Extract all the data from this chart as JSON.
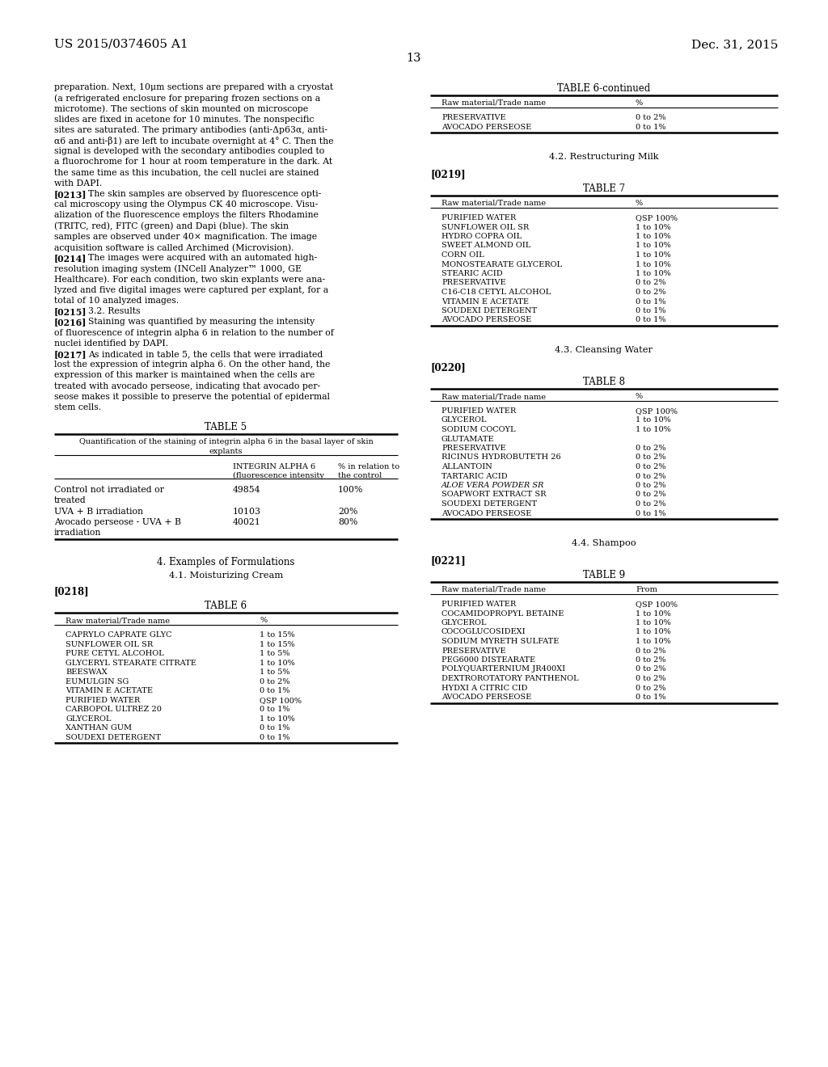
{
  "header_left": "US 2015/0374605 A1",
  "header_right": "Dec. 31, 2015",
  "page_number": "13",
  "para0": "preparation. Next, 10μm sections are prepared with a cryostat (a refrigerated enclosure for preparing frozen sections on a microtome). The sections of skin mounted on microscope slides are fixed in acetone for 10 minutes. The nonspecific sites are saturated. The primary antibodies (anti-Δp63α, anti-α6 and anti-β1) are left to incubate overnight at 4° C. Then the signal is developed with the secondary antibodies coupled to a fluorochrome for 1 hour at room temperature in the dark. At the same time as this incubation, the cell nuclei are stained with DAPI.",
  "para0_lines": [
    "preparation. Next, 10μm sections are prepared with a cryostat",
    "(a refrigerated enclosure for preparing frozen sections on a",
    "microtome). The sections of skin mounted on microscope",
    "slides are fixed in acetone for 10 minutes. The nonspecific",
    "sites are saturated. The primary antibodies (anti-Δp63α, anti-",
    "α6 and anti-β1) are left to incubate overnight at 4° C. Then the",
    "signal is developed with the secondary antibodies coupled to",
    "a fluorochrome for 1 hour at room temperature in the dark. At",
    "the same time as this incubation, the cell nuclei are stained",
    "with DAPI."
  ],
  "para213_tag": "[0213]",
  "para213_lines": [
    "The skin samples are observed by fluorescence opti-",
    "cal microscopy using the Olympus CK 40 microscope. Visu-",
    "alization of the fluorescence employs the filters Rhodamine",
    "(TRITC, red), FITC (green) and Dapi (blue). The skin",
    "samples are observed under 40× magnification. The image",
    "acquisition software is called Archimed (Microvision)."
  ],
  "para214_tag": "[0214]",
  "para214_lines": [
    "The images were acquired with an automated high-",
    "resolution imaging system (INCell Analyzer™ 1000, GE",
    "Healthcare). For each condition, two skin explants were ana-",
    "lyzed and five digital images were captured per explant, for a",
    "total of 10 analyzed images."
  ],
  "para215_tag": "[0215]",
  "para215_text": "3.2. Results",
  "para216_tag": "[0216]",
  "para216_lines": [
    "Staining was quantified by measuring the intensity",
    "of fluorescence of integrin alpha 6 in relation to the number of",
    "nuclei identified by DAPI."
  ],
  "para217_tag": "[0217]",
  "para217_lines": [
    "As indicated in table 5, the cells that were irradiated",
    "lost the expression of integrin alpha 6. On the other hand, the",
    "expression of this marker is maintained when the cells are",
    "treated with avocado perseose, indicating that avocado per-",
    "seose makes it possible to preserve the potential of epidermal",
    "stem cells."
  ],
  "table5_title": "TABLE 5",
  "table5_sub1": "Quantification of the staining of integrin alpha 6 in the basal layer of skin",
  "table5_sub2": "explants",
  "table5_col2a": "INTEGRIN ALPHA 6",
  "table5_col2b": "(fluorescence intensity",
  "table5_col3a": "% in relation to",
  "table5_col3b": "the control",
  "table5_rows": [
    [
      "Control not irradiated or",
      "treated",
      "49854",
      "100%"
    ],
    [
      "UVA + B irradiation",
      "",
      "10103",
      "20%"
    ],
    [
      "Avocado perseose - UVA + B",
      "irradiation",
      "40021",
      "80%"
    ]
  ],
  "sec4_title": "4. Examples of Formulations",
  "sec41_title": "4.1. Moisturizing Cream",
  "tag0218": "[0218]",
  "table6_title": "TABLE 6",
  "table6_col1": "Raw material/Trade name",
  "table6_col2": "%",
  "table6_rows": [
    [
      "CAPRYLO CAPRATE GLYC",
      "1 to 15%"
    ],
    [
      "SUNFLOWER OIL SR",
      "1 to 15%"
    ],
    [
      "PURE CETYL ALCOHOL",
      "1 to 5%"
    ],
    [
      "GLYCERYL STEARATE CITRATE",
      "1 to 10%"
    ],
    [
      "BEESWAX",
      "1 to 5%"
    ],
    [
      "EUMULGIN SG",
      "0 to 2%"
    ],
    [
      "VITAMIN E ACETATE",
      "0 to 1%"
    ],
    [
      "PURIFIED WATER",
      "QSP 100%"
    ],
    [
      "CARBOPOL ULTREZ 20",
      "0 to 1%"
    ],
    [
      "GLYCEROL",
      "1 to 10%"
    ],
    [
      "XANTHAN GUM",
      "0 to 1%"
    ],
    [
      "SOUDEXI DETERGENT",
      "0 to 1%"
    ]
  ],
  "table6c_title": "TABLE 6-continued",
  "table6c_col1": "Raw material/Trade name",
  "table6c_col2": "%",
  "table6c_rows": [
    [
      "PRESERVATIVE",
      "0 to 2%"
    ],
    [
      "AVOCADO PERSEOSE",
      "0 to 1%"
    ]
  ],
  "sec42_title": "4.2. Restructuring Milk",
  "tag0219": "[0219]",
  "table7_title": "TABLE 7",
  "table7_col1": "Raw material/Trade name",
  "table7_col2": "%",
  "table7_rows": [
    [
      "PURIFIED WATER",
      "QSP 100%"
    ],
    [
      "SUNFLOWER OIL SR",
      "1 to 10%"
    ],
    [
      "HYDRO COPRA OIL",
      "1 to 10%"
    ],
    [
      "SWEET ALMOND OIL",
      "1 to 10%"
    ],
    [
      "CORN OIL",
      "1 to 10%"
    ],
    [
      "MONOSTEARATE GLYCEROL",
      "1 to 10%"
    ],
    [
      "STEARIC ACID",
      "1 to 10%"
    ],
    [
      "PRESERVATIVE",
      "0 to 2%"
    ],
    [
      "C16-C18 CETYL ALCOHOL",
      "0 to 2%"
    ],
    [
      "VITAMIN E ACETATE",
      "0 to 1%"
    ],
    [
      "SOUDEXI DETERGENT",
      "0 to 1%"
    ],
    [
      "AVOCADO PERSEOSE",
      "0 to 1%"
    ]
  ],
  "sec43_title": "4.3. Cleansing Water",
  "tag0220": "[0220]",
  "table8_title": "TABLE 8",
  "table8_col1": "Raw material/Trade name",
  "table8_col2": "%",
  "table8_rows": [
    [
      "PURIFIED WATER",
      "QSP 100%",
      false
    ],
    [
      "GLYCEROL",
      "1 to 10%",
      false
    ],
    [
      "SODIUM COCOYL",
      "1 to 10%",
      false
    ],
    [
      "GLUTAMATE",
      "",
      false
    ],
    [
      "PRESERVATIVE",
      "0 to 2%",
      false
    ],
    [
      "RICINUS HYDROBUTETH 26",
      "0 to 2%",
      false
    ],
    [
      "ALLANTOIN",
      "0 to 2%",
      false
    ],
    [
      "TARTARIC ACID",
      "0 to 2%",
      false
    ],
    [
      "ALOE VERA POWDER SR",
      "0 to 2%",
      true
    ],
    [
      "SOAPWORT EXTRACT SR",
      "0 to 2%",
      false
    ],
    [
      "SOUDEXI DETERGENT",
      "0 to 2%",
      false
    ],
    [
      "AVOCADO PERSEOSE",
      "0 to 1%",
      false
    ]
  ],
  "sec44_title": "4.4. Shampoo",
  "tag0221": "[0221]",
  "table9_title": "TABLE 9",
  "table9_col1": "Raw material/Trade name",
  "table9_col2": "From",
  "table9_rows": [
    [
      "PURIFIED WATER",
      "QSP 100%"
    ],
    [
      "COCAMIDOPROPYL BETAINE",
      "1 to 10%"
    ],
    [
      "GLYCEROL",
      "1 to 10%"
    ],
    [
      "COCOGLUCOSIDEXI",
      "1 to 10%"
    ],
    [
      "SODIUM MYRETH SULFATE",
      "1 to 10%"
    ],
    [
      "PRESERVATIVE",
      "0 to 2%"
    ],
    [
      "PEG6000 DISTEARATE",
      "0 to 2%"
    ],
    [
      "POLYQUARTERNIUM JR400XI",
      "0 to 2%"
    ],
    [
      "DEXTROROTATORY PANTHENOL",
      "0 to 2%"
    ],
    [
      "HYDXI A CITRIC CID",
      "0 to 2%"
    ],
    [
      "AVOCADO PERSEOSE",
      "0 to 1%"
    ]
  ]
}
